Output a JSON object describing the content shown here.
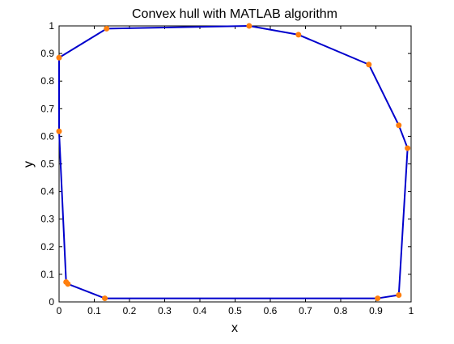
{
  "chart_data": {
    "type": "line",
    "title": "Convex hull with MATLAB algorithm",
    "xlabel": "x",
    "ylabel": "y",
    "xlim": [
      0,
      1
    ],
    "ylim": [
      0,
      1
    ],
    "xticks": [
      "0",
      "0.1",
      "0.2",
      "0.3",
      "0.4",
      "0.5",
      "0.6",
      "0.7",
      "0.8",
      "0.9",
      "1"
    ],
    "yticks": [
      "0",
      "0.1",
      "0.2",
      "0.3",
      "0.4",
      "0.5",
      "0.6",
      "0.7",
      "0.8",
      "0.9",
      "1"
    ],
    "grid": false,
    "legend": "none",
    "line_color": "#0000CC",
    "marker_color": "#FF7F0E",
    "series": [
      {
        "x": [
          0.0,
          0.135,
          0.54,
          0.68,
          0.88,
          0.965,
          0.99,
          0.965,
          0.905,
          0.13,
          0.025,
          0.02,
          0.0,
          0.0
        ],
        "y": [
          0.885,
          0.99,
          1.0,
          0.968,
          0.86,
          0.64,
          0.557,
          0.025,
          0.013,
          0.013,
          0.065,
          0.072,
          0.618,
          0.885
        ]
      }
    ]
  }
}
